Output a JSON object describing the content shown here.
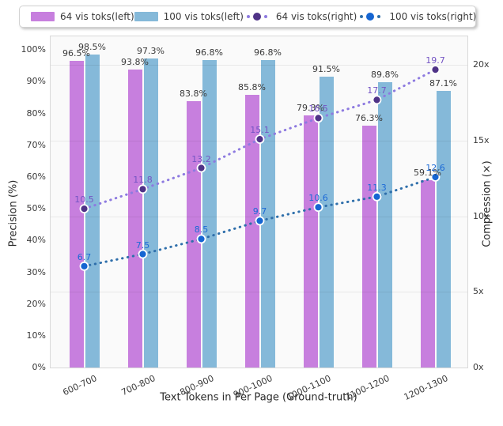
{
  "chart_data": {
    "type": "bar",
    "categories": [
      "600-700",
      "700-800",
      "800-900",
      "900-1000",
      "1000-1100",
      "1100-1200",
      "1200-1300"
    ],
    "series": [
      {
        "name": "64 vis toks(left)",
        "kind": "bar",
        "axis": "left",
        "color": "#c77fde",
        "values": [
          96.5,
          93.8,
          83.8,
          85.8,
          79.3,
          76.3,
          59.1
        ]
      },
      {
        "name": "100 vis toks(left)",
        "kind": "bar",
        "axis": "left",
        "color": "#85b9d9",
        "values": [
          98.5,
          97.3,
          96.8,
          96.8,
          91.5,
          89.8,
          87.1
        ]
      },
      {
        "name": "64 vis toks(right)",
        "kind": "line",
        "axis": "right",
        "line_color": "#8d7ae0",
        "marker_color": "#4f3387",
        "label_color": "#7454c4",
        "values": [
          10.5,
          11.8,
          13.2,
          15.1,
          16.5,
          17.7,
          19.7
        ]
      },
      {
        "name": "100 vis toks(right)",
        "kind": "line",
        "axis": "right",
        "line_color": "#2f6fab",
        "marker_color": "#1565d2",
        "label_color": "#1d6ad6",
        "values": [
          6.7,
          7.5,
          8.5,
          9.7,
          10.6,
          11.3,
          12.6
        ]
      }
    ],
    "title": "",
    "xlabel": "Text Tokens in Per Page (Ground-truth)",
    "ylabel_left": "Precision (%)",
    "ylabel_right": "Compression (×)",
    "yticks_left": [
      {
        "label": "0%",
        "value": 0
      },
      {
        "label": "10%",
        "value": 10
      },
      {
        "label": "20%",
        "value": 20
      },
      {
        "label": "30%",
        "value": 30
      },
      {
        "label": "40%",
        "value": 40
      },
      {
        "label": "50%",
        "value": 50
      },
      {
        "label": "60%",
        "value": 60
      },
      {
        "label": "70%",
        "value": 70
      },
      {
        "label": "80%",
        "value": 80
      },
      {
        "label": "90%",
        "value": 90
      },
      {
        "label": "100%",
        "value": 100
      }
    ],
    "yticks_right": [
      {
        "label": "0x",
        "value": 0
      },
      {
        "label": "5x",
        "value": 5
      },
      {
        "label": "10x",
        "value": 10
      },
      {
        "label": "15x",
        "value": 15
      },
      {
        "label": "20x",
        "value": 20
      }
    ],
    "ylim_left": [
      0,
      104.3
    ],
    "ylim_right": [
      0,
      21.9
    ],
    "grid": "horizontal at right-axis ticks",
    "legend_position": "top",
    "bar_label_suffix": "%"
  }
}
